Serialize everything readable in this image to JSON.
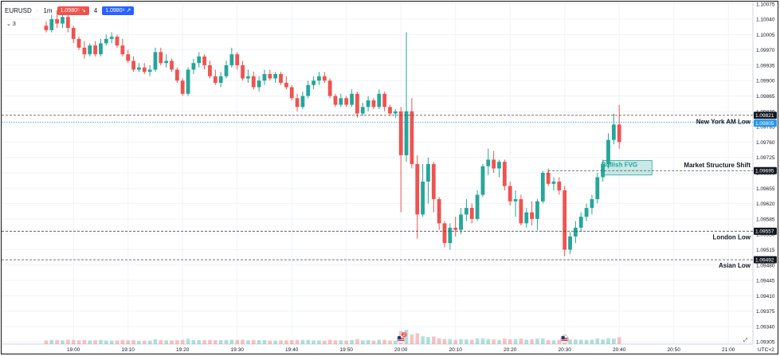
{
  "header": {
    "symbol": "EURUSD",
    "timeframe": "1m",
    "sell_price": "1.0980⁵",
    "spread": "4",
    "buy_price": "1.0980⁹",
    "study_count": "3"
  },
  "chart_data": {
    "type": "candlestick",
    "title": "",
    "xlabel": "",
    "ylabel": "",
    "timezone_label": "UTC+2",
    "y_ticks": [
      "1.10075",
      "1.10040",
      "1.10005",
      "1.09970",
      "1.09935",
      "1.09900",
      "1.09865",
      "1.09830",
      "1.09795",
      "1.09760",
      "1.09725",
      "1.09690",
      "1.09655",
      "1.09620",
      "1.09585",
      "1.09550",
      "1.09515",
      "1.09480",
      "1.09445",
      "1.09410",
      "1.09375",
      "1.09340",
      "1.09305"
    ],
    "x_ticks": [
      "19:00",
      "19:10",
      "19:20",
      "19:30",
      "19:40",
      "19:50",
      "20:00",
      "20:10",
      "20:20",
      "20:30",
      "20:40",
      "20:50",
      "21:00"
    ],
    "ylim": [
      1.093,
      1.1008
    ],
    "candles": [
      [
        "18:55",
        1.10025,
        1.10035,
        1.1001,
        1.10015
      ],
      [
        "18:56",
        1.10015,
        1.1005,
        1.1001,
        1.1004
      ],
      [
        "18:57",
        1.1004,
        1.1006,
        1.1002,
        1.1003
      ],
      [
        "18:58",
        1.1003,
        1.1005,
        1.1002,
        1.10045
      ],
      [
        "18:59",
        1.10045,
        1.10055,
        1.1001,
        1.1002
      ],
      [
        "19:00",
        1.1002,
        1.10025,
        1.09985,
        1.09995
      ],
      [
        "19:01",
        1.09995,
        1.1,
        1.0997,
        1.09975
      ],
      [
        "19:02",
        1.09975,
        1.0999,
        1.0995,
        1.0996
      ],
      [
        "19:03",
        1.0996,
        1.09985,
        1.09955,
        1.0998
      ],
      [
        "19:04",
        1.0998,
        1.0999,
        1.09955,
        1.0996
      ],
      [
        "19:05",
        1.0996,
        1.09995,
        1.09955,
        1.09985
      ],
      [
        "19:06",
        1.09985,
        1.10005,
        1.0998,
        1.09995
      ],
      [
        "19:07",
        1.09995,
        1.1001,
        1.09985,
        1.1
      ],
      [
        "19:08",
        1.1,
        1.10005,
        1.09975,
        1.0998
      ],
      [
        "19:09",
        1.0998,
        1.09995,
        1.09955,
        1.0996
      ],
      [
        "19:10",
        1.0996,
        1.0997,
        1.0994,
        1.09945
      ],
      [
        "19:11",
        1.09945,
        1.09955,
        1.0992,
        1.09925
      ],
      [
        "19:12",
        1.09925,
        1.0994,
        1.0992,
        1.0993
      ],
      [
        "19:13",
        1.0993,
        1.0994,
        1.09915,
        1.0992
      ],
      [
        "19:14",
        1.0992,
        1.09935,
        1.0991,
        1.09925
      ],
      [
        "19:15",
        1.09925,
        1.09975,
        1.0992,
        1.09965
      ],
      [
        "19:16",
        1.09965,
        1.09975,
        1.09935,
        1.0994
      ],
      [
        "19:17",
        1.0994,
        1.0996,
        1.0993,
        1.09945
      ],
      [
        "19:18",
        1.09945,
        1.0995,
        1.0992,
        1.09925
      ],
      [
        "19:19",
        1.09925,
        1.0993,
        1.09895,
        1.099
      ],
      [
        "19:20",
        1.099,
        1.09905,
        1.09865,
        1.0987
      ],
      [
        "19:21",
        1.0987,
        1.0993,
        1.09865,
        1.09925
      ],
      [
        "19:22",
        1.09925,
        1.0995,
        1.09915,
        1.0994
      ],
      [
        "19:23",
        1.0994,
        1.09965,
        1.0993,
        1.09955
      ],
      [
        "19:24",
        1.09955,
        1.0996,
        1.09925,
        1.09935
      ],
      [
        "19:25",
        1.09935,
        1.09945,
        1.09905,
        1.0991
      ],
      [
        "19:26",
        1.0991,
        1.09925,
        1.0989,
        1.09895
      ],
      [
        "19:27",
        1.09895,
        1.0992,
        1.09885,
        1.0991
      ],
      [
        "19:28",
        1.0991,
        1.09945,
        1.09905,
        1.09935
      ],
      [
        "19:29",
        1.09935,
        1.09975,
        1.0993,
        1.0996
      ],
      [
        "19:30",
        1.0996,
        1.09965,
        1.09925,
        1.09935
      ],
      [
        "19:31",
        1.09935,
        1.09945,
        1.099,
        1.09905
      ],
      [
        "19:32",
        1.09905,
        1.09925,
        1.09895,
        1.0991
      ],
      [
        "19:33",
        1.0991,
        1.0992,
        1.0988,
        1.09885
      ],
      [
        "19:34",
        1.09885,
        1.0991,
        1.09875,
        1.099
      ],
      [
        "19:35",
        1.099,
        1.09925,
        1.0989,
        1.09915
      ],
      [
        "19:36",
        1.09915,
        1.09925,
        1.099,
        1.09905
      ],
      [
        "19:37",
        1.09905,
        1.0992,
        1.09895,
        1.09915
      ],
      [
        "19:38",
        1.09915,
        1.0992,
        1.0989,
        1.09895
      ],
      [
        "19:39",
        1.09895,
        1.0991,
        1.0988,
        1.09885
      ],
      [
        "19:40",
        1.09885,
        1.0989,
        1.09855,
        1.0986
      ],
      [
        "19:41",
        1.0986,
        1.0987,
        1.0983,
        1.0984
      ],
      [
        "19:42",
        1.0984,
        1.09875,
        1.09835,
        1.09865
      ],
      [
        "19:43",
        1.09865,
        1.099,
        1.0986,
        1.0989
      ],
      [
        "19:44",
        1.0989,
        1.0991,
        1.0988,
        1.099
      ],
      [
        "19:45",
        1.099,
        1.0992,
        1.0989,
        1.0991
      ],
      [
        "19:46",
        1.0991,
        1.0992,
        1.09895,
        1.099
      ],
      [
        "19:47",
        1.099,
        1.09905,
        1.0986,
        1.09865
      ],
      [
        "19:48",
        1.09865,
        1.0987,
        1.0984,
        1.09845
      ],
      [
        "19:49",
        1.09845,
        1.0987,
        1.0984,
        1.0986
      ],
      [
        "19:50",
        1.0986,
        1.09865,
        1.0984,
        1.09845
      ],
      [
        "19:51",
        1.09845,
        1.0988,
        1.0984,
        1.0987
      ],
      [
        "19:52",
        1.0987,
        1.09875,
        1.09815,
        1.09825
      ],
      [
        "19:53",
        1.09825,
        1.0985,
        1.0982,
        1.0984
      ],
      [
        "19:54",
        1.0984,
        1.09865,
        1.0983,
        1.09855
      ],
      [
        "19:55",
        1.09855,
        1.0986,
        1.09835,
        1.0984
      ],
      [
        "19:56",
        1.0984,
        1.0988,
        1.09835,
        1.0987
      ],
      [
        "19:57",
        1.0987,
        1.09875,
        1.0983,
        1.0984
      ],
      [
        "19:58",
        1.0984,
        1.09845,
        1.0982,
        1.09825
      ],
      [
        "19:59",
        1.09825,
        1.09835,
        1.09815,
        1.0983
      ],
      [
        "20:00",
        1.0983,
        1.0984,
        1.096,
        1.0973
      ],
      [
        "20:01",
        1.0973,
        1.1001,
        1.09715,
        1.0983
      ],
      [
        "20:02",
        1.0983,
        1.0986,
        1.097,
        1.0971
      ],
      [
        "20:03",
        1.0971,
        1.0973,
        1.0954,
        1.09595
      ],
      [
        "20:04",
        1.09595,
        1.0971,
        1.0959,
        1.0967
      ],
      [
        "20:05",
        1.0967,
        1.09725,
        1.0962,
        1.0971
      ],
      [
        "20:06",
        1.0971,
        1.09715,
        1.096,
        1.0963
      ],
      [
        "20:07",
        1.0963,
        1.09635,
        1.0956,
        1.09575
      ],
      [
        "20:08",
        1.09575,
        1.0958,
        1.0952,
        1.0953
      ],
      [
        "20:09",
        1.0953,
        1.09575,
        1.09515,
        1.09565
      ],
      [
        "20:10",
        1.09565,
        1.0959,
        1.09545,
        1.0956
      ],
      [
        "20:11",
        1.0956,
        1.0961,
        1.0955,
        1.09595
      ],
      [
        "20:12",
        1.09595,
        1.0963,
        1.0958,
        1.0961
      ],
      [
        "20:13",
        1.0961,
        1.0962,
        1.09575,
        1.09585
      ],
      [
        "20:14",
        1.09585,
        1.0965,
        1.0958,
        1.0964
      ],
      [
        "20:15",
        1.0964,
        1.0971,
        1.09635,
        1.09705
      ],
      [
        "20:16",
        1.09705,
        1.09745,
        1.09685,
        1.0972
      ],
      [
        "20:17",
        1.0972,
        1.0974,
        1.0969,
        1.097
      ],
      [
        "20:18",
        1.097,
        1.0972,
        1.0968,
        1.09715
      ],
      [
        "20:19",
        1.09715,
        1.0972,
        1.0965,
        1.0966
      ],
      [
        "20:20",
        1.0966,
        1.0967,
        1.09615,
        1.09625
      ],
      [
        "20:21",
        1.09625,
        1.0965,
        1.0959,
        1.0963
      ],
      [
        "20:22",
        1.0963,
        1.0964,
        1.0957,
        1.09575
      ],
      [
        "20:23",
        1.09575,
        1.0961,
        1.09565,
        1.096
      ],
      [
        "20:24",
        1.096,
        1.09625,
        1.0957,
        1.09585
      ],
      [
        "20:25",
        1.09585,
        1.0963,
        1.0956,
        1.09625
      ],
      [
        "20:26",
        1.09625,
        1.09695,
        1.0962,
        1.0969
      ],
      [
        "20:27",
        1.0969,
        1.097,
        1.0966,
        1.09665
      ],
      [
        "20:28",
        1.09665,
        1.0968,
        1.0965,
        1.0967
      ],
      [
        "20:29",
        1.0967,
        1.0968,
        1.0964,
        1.0965
      ],
      [
        "20:30",
        1.0965,
        1.0966,
        1.095,
        1.09515
      ],
      [
        "20:31",
        1.09515,
        1.09555,
        1.09505,
        1.09545
      ],
      [
        "20:32",
        1.09545,
        1.0958,
        1.0953,
        1.09565
      ],
      [
        "20:33",
        1.09565,
        1.096,
        1.09555,
        1.0959
      ],
      [
        "20:34",
        1.0959,
        1.0962,
        1.0958,
        1.0961
      ],
      [
        "20:35",
        1.0961,
        1.0964,
        1.09595,
        1.0963
      ],
      [
        "20:36",
        1.0963,
        1.0969,
        1.0962,
        1.0968
      ],
      [
        "20:37",
        1.0968,
        1.0972,
        1.0967,
        1.0971
      ],
      [
        "20:38",
        1.0971,
        1.0978,
        1.097,
        1.09765
      ],
      [
        "20:39",
        1.09765,
        1.09825,
        1.09755,
        1.098
      ],
      [
        "20:40",
        1.098,
        1.09845,
        1.09745,
        1.0976
      ]
    ],
    "levels": [
      {
        "name": "",
        "price_label": "1.09821",
        "value": 1.09821,
        "style": "dashed-dark"
      },
      {
        "name": "New York AM Low",
        "price_label": "1.09805",
        "value": 1.09805,
        "style": "dotted-blue"
      },
      {
        "name": "Market Structure Shift",
        "price_label": "1.09695",
        "value": 1.09695,
        "style": "dashed-dark"
      },
      {
        "name": "London Low",
        "price_label": "1.09557",
        "value": 1.09557,
        "style": "dashed-dark"
      },
      {
        "name": "Asian Low",
        "price_label": "1.09492",
        "value": 1.09492,
        "style": "dashed-dark"
      }
    ],
    "fvg_zone": {
      "label": "Bullish FVG",
      "from_time": "20:37",
      "to_time": "20:46",
      "low": 1.09685,
      "high": 1.09718,
      "color": "#26a69a"
    },
    "event_markers": [
      {
        "time": "20:00",
        "badge": "2"
      },
      {
        "time": "20:30",
        "badge": ""
      }
    ],
    "colors": {
      "up": "#26a69a",
      "down": "#ef5350",
      "blue_tag": "#2196f3",
      "dark_tag": "#131722"
    }
  }
}
